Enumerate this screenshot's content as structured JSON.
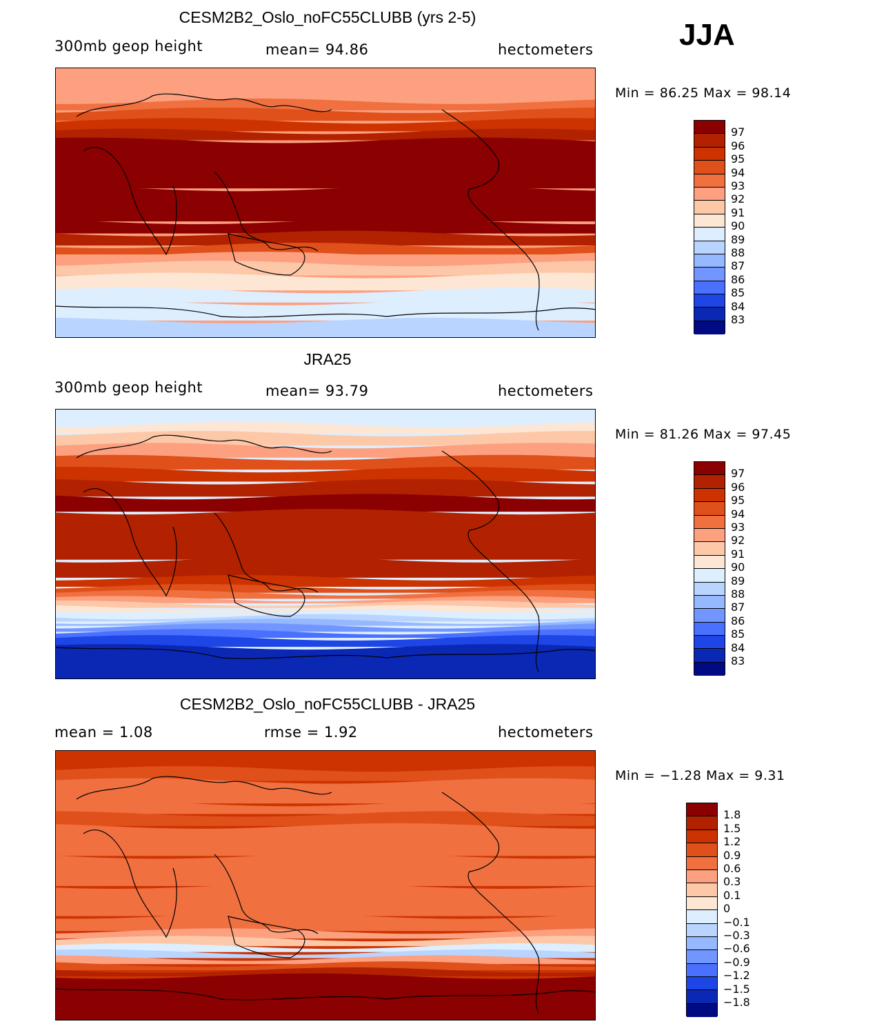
{
  "season": "JJA",
  "panels": [
    {
      "title": "CESM2B2_Oslo_noFC55CLUBB (yrs 2-5)",
      "left_label": "300mb  geop  height",
      "center_label": "mean=   94.86",
      "right_label": "hectometers",
      "minmax": "Min =   86.25  Max =   98.14",
      "colorbar_labels": [
        "97",
        "96",
        "95",
        "94",
        "93",
        "92",
        "91",
        "90",
        "89",
        "88",
        "87",
        "86",
        "85",
        "84",
        "83"
      ],
      "bands": [
        {
          "lat": 90,
          "level": 92
        },
        {
          "lat": 75,
          "level": 92
        },
        {
          "lat": 68,
          "level": 93
        },
        {
          "lat": 62,
          "level": 94
        },
        {
          "lat": 55,
          "level": 95
        },
        {
          "lat": 48,
          "level": 96
        },
        {
          "lat": 42,
          "level": 97
        },
        {
          "lat": 10,
          "level": 97
        },
        {
          "lat": -12,
          "level": 97
        },
        {
          "lat": -20,
          "level": 96
        },
        {
          "lat": -28,
          "level": 94
        },
        {
          "lat": -34,
          "level": 92
        },
        {
          "lat": -40,
          "level": 91
        },
        {
          "lat": -48,
          "level": 90
        },
        {
          "lat": -58,
          "level": 89
        },
        {
          "lat": -66,
          "level": 89
        },
        {
          "lat": -78,
          "level": 88
        },
        {
          "lat": -90,
          "level": 88
        }
      ]
    },
    {
      "title": "JRA25",
      "left_label": "300mb  geop  height",
      "center_label": "mean=   93.79",
      "right_label": "hectometers",
      "minmax": "Min =   81.26  Max =   97.45",
      "colorbar_labels": [
        "97",
        "96",
        "95",
        "94",
        "93",
        "92",
        "91",
        "90",
        "89",
        "88",
        "87",
        "86",
        "85",
        "84",
        "83"
      ],
      "bands": [
        {
          "lat": 90,
          "level": 89
        },
        {
          "lat": 80,
          "level": 90
        },
        {
          "lat": 74,
          "level": 91
        },
        {
          "lat": 66,
          "level": 92
        },
        {
          "lat": 58,
          "level": 94
        },
        {
          "lat": 50,
          "level": 95
        },
        {
          "lat": 42,
          "level": 96
        },
        {
          "lat": 32,
          "level": 97
        },
        {
          "lat": 22,
          "level": 96
        },
        {
          "lat": -10,
          "level": 96
        },
        {
          "lat": -22,
          "level": 95
        },
        {
          "lat": -28,
          "level": 94
        },
        {
          "lat": -32,
          "level": 93
        },
        {
          "lat": -36,
          "level": 92
        },
        {
          "lat": -39,
          "level": 91
        },
        {
          "lat": -42,
          "level": 90
        },
        {
          "lat": -45,
          "level": 89
        },
        {
          "lat": -48,
          "level": 88
        },
        {
          "lat": -51,
          "level": 87
        },
        {
          "lat": -54,
          "level": 86
        },
        {
          "lat": -58,
          "level": 85
        },
        {
          "lat": -62,
          "level": 84
        },
        {
          "lat": -68,
          "level": 83
        },
        {
          "lat": -90,
          "level": 83
        }
      ]
    },
    {
      "title": "CESM2B2_Oslo_noFC55CLUBB - JRA25",
      "left_label": "mean =     1.08",
      "center_label": "rmse =     1.92",
      "right_label": "hectometers",
      "minmax": "Min =   −1.28  Max =      9.31",
      "colorbar_labels": [
        "1.8",
        "1.5",
        "1.2",
        "0.9",
        "0.6",
        "0.3",
        "0.1",
        "0",
        "−0.1",
        "−0.3",
        "−0.6",
        "−0.9",
        "−1.2",
        "−1.5",
        "−1.8"
      ],
      "bands": [
        {
          "lat": 90,
          "level": 1.2
        },
        {
          "lat": 78,
          "level": 0.9
        },
        {
          "lat": 70,
          "level": 0.6
        },
        {
          "lat": 55,
          "level": 0.6
        },
        {
          "lat": 48,
          "level": 0.9
        },
        {
          "lat": 40,
          "level": 0.6
        },
        {
          "lat": 20,
          "level": 0.6
        },
        {
          "lat": 0,
          "level": 0.6
        },
        {
          "lat": -20,
          "level": 0.6
        },
        {
          "lat": -30,
          "level": 0.3
        },
        {
          "lat": -35,
          "level": 0.1
        },
        {
          "lat": -40,
          "level": -0.1
        },
        {
          "lat": -44,
          "level": -0.3
        },
        {
          "lat": -48,
          "level": 0.3
        },
        {
          "lat": -52,
          "level": 0.9
        },
        {
          "lat": -56,
          "level": 1.5
        },
        {
          "lat": -60,
          "level": 1.8
        },
        {
          "lat": -90,
          "level": 1.8
        }
      ]
    }
  ],
  "colors": {
    "scale": [
      "#8b0000",
      "#b22200",
      "#cc3300",
      "#e0501a",
      "#f07040",
      "#fca080",
      "#fdc8a8",
      "#fde6d4",
      "#ddeeff",
      "#b8d4ff",
      "#96b8ff",
      "#7296ff",
      "#4a70ff",
      "#1e46e6",
      "#0a28b4",
      "#000a82"
    ]
  }
}
